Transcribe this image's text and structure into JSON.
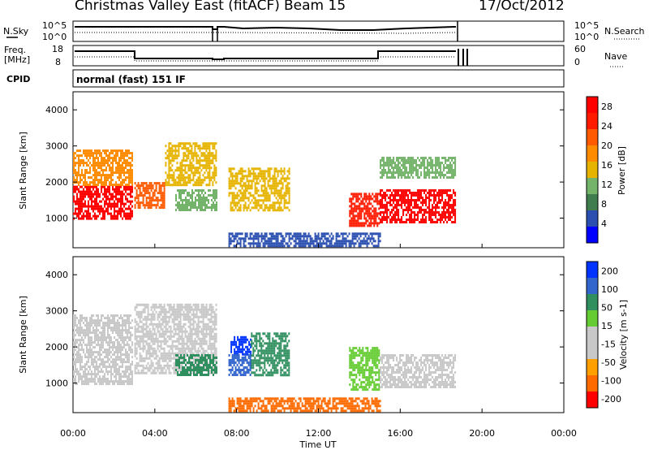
{
  "header": {
    "station": "Christmas Valley East (fitACF)",
    "beam": "Beam 15",
    "date": "17/Oct/2012"
  },
  "nsky_panel": {
    "left_label": "N.Sky",
    "right_label": "N.Search",
    "left_ticks": [
      "10^5",
      "10^0"
    ],
    "right_ticks": [
      "10^5",
      "10^0"
    ]
  },
  "freq_panel": {
    "left_label_1": "Freq.",
    "left_label_2": "[MHz]",
    "right_label": "Nave",
    "left_ticks": [
      "18",
      "8"
    ],
    "right_ticks": [
      "60",
      "0"
    ]
  },
  "cpid": {
    "label": "CPID",
    "value": "normal (fast) 151 IF"
  },
  "colors": {
    "power_scale": [
      "#0000ff",
      "#2a4fb0",
      "#3f7d4f",
      "#74b36a",
      "#e6b400",
      "#ff8c00",
      "#ff5a00",
      "#ff1a00",
      "#ff0000"
    ],
    "velocity_scale": [
      "#0033ff",
      "#3366cc",
      "#2f8f5f",
      "#66cc33",
      "#c8c8c8",
      "#c8c8c8",
      "#ffa000",
      "#ff6a00",
      "#ff0000"
    ]
  },
  "chart_data": [
    {
      "type": "heatmap",
      "panel": "power",
      "ylabel": "Slant Range [km]",
      "ylim": [
        180,
        4500
      ],
      "yticks": [
        1000,
        2000,
        3000,
        4000
      ],
      "colorbar_label": "Power [dB]",
      "colorbar_ticks": [
        4,
        8,
        12,
        16,
        20,
        24,
        28
      ],
      "colorbar_range": [
        0,
        30
      ],
      "echo_regions": [
        {
          "t": [
            0.0,
            2.9
          ],
          "r": [
            1000,
            1900
          ],
          "value": 28
        },
        {
          "t": [
            0.0,
            2.9
          ],
          "r": [
            1900,
            2900
          ],
          "value": 18
        },
        {
          "t": [
            3.0,
            4.5
          ],
          "r": [
            1300,
            2000
          ],
          "value": 20
        },
        {
          "t": [
            4.5,
            7.0
          ],
          "r": [
            1900,
            3100
          ],
          "value": 14
        },
        {
          "t": [
            5.0,
            7.0
          ],
          "r": [
            1200,
            1800
          ],
          "value": 10
        },
        {
          "t": [
            7.6,
            10.6
          ],
          "r": [
            1200,
            2400
          ],
          "value": 16
        },
        {
          "t": [
            13.5,
            15.0
          ],
          "r": [
            800,
            1700
          ],
          "value": 26
        },
        {
          "t": [
            15.0,
            18.7
          ],
          "r": [
            900,
            1800
          ],
          "value": 28
        },
        {
          "t": [
            15.0,
            18.7
          ],
          "r": [
            2100,
            2700
          ],
          "value": 10
        },
        {
          "t": [
            7.6,
            15.0
          ],
          "r": [
            200,
            600
          ],
          "value": 6
        }
      ]
    },
    {
      "type": "heatmap",
      "panel": "velocity",
      "ylabel": "Slant Range [km]",
      "xlabel": "Time UT",
      "ylim": [
        180,
        4500
      ],
      "yticks": [
        1000,
        2000,
        3000,
        4000
      ],
      "xlim": [
        0,
        24
      ],
      "xticks": [
        "00:00",
        "04:00",
        "08:00",
        "12:00",
        "16:00",
        "20:00",
        "00:00"
      ],
      "colorbar_label": "Velocity [m s-1]",
      "colorbar_ticks": [
        200,
        100,
        50,
        15,
        -15,
        -50,
        -100,
        -200
      ],
      "echo_regions": [
        {
          "t": [
            0.0,
            2.9
          ],
          "r": [
            1000,
            2900
          ],
          "value": 0
        },
        {
          "t": [
            3.0,
            7.0
          ],
          "r": [
            1300,
            3200
          ],
          "value": 0
        },
        {
          "t": [
            5.0,
            7.0
          ],
          "r": [
            1200,
            1800
          ],
          "value": 60
        },
        {
          "t": [
            7.7,
            8.7
          ],
          "r": [
            1800,
            2300
          ],
          "value": 200
        },
        {
          "t": [
            8.7,
            10.6
          ],
          "r": [
            1200,
            2400
          ],
          "value": 40
        },
        {
          "t": [
            7.6,
            8.7
          ],
          "r": [
            1200,
            1800
          ],
          "value": 100
        },
        {
          "t": [
            13.5,
            15.0
          ],
          "r": [
            800,
            2000
          ],
          "value": 30
        },
        {
          "t": [
            15.0,
            18.7
          ],
          "r": [
            900,
            1800
          ],
          "value": 0
        },
        {
          "t": [
            7.6,
            15.0
          ],
          "r": [
            200,
            600
          ],
          "value": -60
        }
      ]
    }
  ]
}
